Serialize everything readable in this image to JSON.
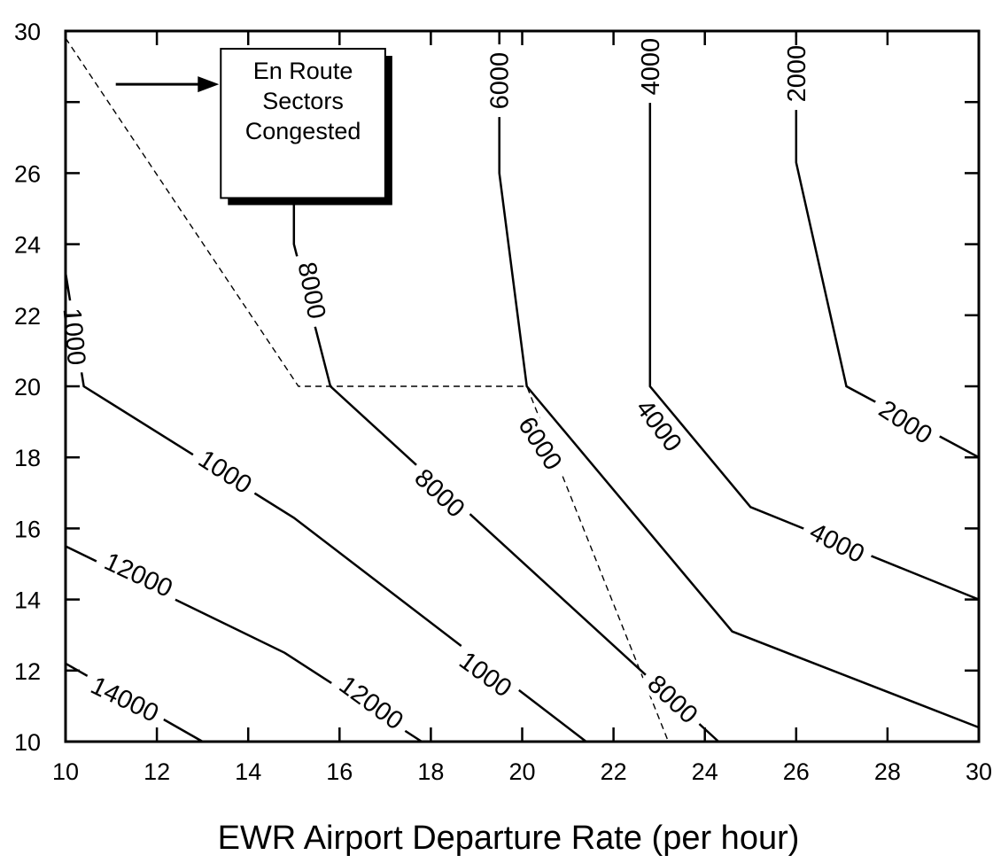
{
  "chart_data": {
    "type": "contour",
    "title": "",
    "xlabel": "EWR Airport Departure Rate (per hour)",
    "ylabel": "",
    "xlim": [
      10,
      30
    ],
    "ylim": [
      10,
      30
    ],
    "xticks": [
      10,
      12,
      14,
      16,
      18,
      20,
      22,
      24,
      26,
      28,
      30
    ],
    "yticks": [
      10,
      12,
      14,
      16,
      18,
      20,
      22,
      24,
      26,
      28,
      30
    ],
    "ytick_labels": [
      "10",
      "12",
      "14",
      "16",
      "18",
      "20",
      "22",
      "24",
      "26",
      "",
      "30"
    ],
    "grid": false,
    "contours": [
      {
        "label": "2000",
        "points": [
          [
            26.0,
            30.0
          ],
          [
            26.0,
            26.3
          ],
          [
            27.1,
            20.0
          ],
          [
            30.0,
            18.0
          ]
        ]
      },
      {
        "label": "4000",
        "points": [
          [
            22.8,
            30.0
          ],
          [
            22.8,
            20.0
          ],
          [
            25.0,
            16.6
          ],
          [
            30.0,
            14.0
          ]
        ]
      },
      {
        "label": "6000",
        "points": [
          [
            19.5,
            30.0
          ],
          [
            19.5,
            26.0
          ],
          [
            20.1,
            20.0
          ],
          [
            24.6,
            13.1
          ],
          [
            30.0,
            10.4
          ]
        ]
      },
      {
        "label": "8000",
        "points": [
          [
            15.0,
            26.3
          ],
          [
            15.0,
            24.0
          ],
          [
            15.8,
            20.0
          ],
          [
            24.3,
            10.0
          ]
        ]
      },
      {
        "label": "1000",
        "points": [
          [
            10.0,
            23.2
          ],
          [
            10.4,
            20.0
          ],
          [
            15.0,
            16.3
          ],
          [
            21.4,
            10.0
          ]
        ]
      },
      {
        "label": "12000",
        "points": [
          [
            10.0,
            15.5
          ],
          [
            14.8,
            12.5
          ],
          [
            17.8,
            10.0
          ]
        ]
      },
      {
        "label": "14000",
        "points": [
          [
            10.0,
            12.2
          ],
          [
            13.0,
            10.0
          ]
        ]
      }
    ],
    "contour_labels": [
      {
        "text": "2000",
        "at": [
          26.0,
          28.8
        ],
        "angle": -90
      },
      {
        "text": "2000",
        "at": [
          28.4,
          19.0
        ],
        "angle": 33
      },
      {
        "text": "4000",
        "at": [
          22.8,
          29.0
        ],
        "angle": -90
      },
      {
        "text": "4000",
        "at": [
          23.0,
          18.9
        ],
        "angle": 53
      },
      {
        "text": "4000",
        "at": [
          26.9,
          15.6
        ],
        "angle": 27
      },
      {
        "text": "6000",
        "at": [
          19.5,
          28.6
        ],
        "angle": -90
      },
      {
        "text": "6000",
        "at": [
          20.4,
          18.4
        ],
        "angle": 57
      },
      {
        "text": "8000",
        "at": [
          15.4,
          22.7
        ],
        "angle": 79
      },
      {
        "text": "8000",
        "at": [
          18.2,
          17.0
        ],
        "angle": 43
      },
      {
        "text": "8000",
        "at": [
          23.3,
          11.2
        ],
        "angle": 43
      },
      {
        "text": "1000",
        "at": [
          10.2,
          21.4
        ],
        "angle": 85
      },
      {
        "text": "1000",
        "at": [
          13.5,
          17.6
        ],
        "angle": 33
      },
      {
        "text": "1000",
        "at": [
          19.2,
          11.9
        ],
        "angle": 36
      },
      {
        "text": "12000",
        "at": [
          11.6,
          14.7
        ],
        "angle": 25
      },
      {
        "text": "12000",
        "at": [
          16.7,
          11.1
        ],
        "angle": 36
      },
      {
        "text": "14000",
        "at": [
          11.3,
          11.2
        ],
        "angle": 26
      }
    ],
    "dashed_boundary": [
      [
        10.0,
        29.8
      ],
      [
        15.1,
        20.0
      ],
      [
        20.1,
        20.0
      ],
      [
        23.2,
        10.0
      ]
    ],
    "annotation": {
      "lines": [
        "En Route",
        "Sectors",
        "Congested"
      ],
      "box_corner_tl": [
        13.4,
        29.5
      ],
      "box_corner_br": [
        17.0,
        25.3
      ],
      "arrow_from": [
        11.1,
        28.5
      ],
      "arrow_to": [
        13.4,
        28.5
      ]
    },
    "colors": {
      "line": "#000000",
      "background": "#ffffff"
    }
  }
}
